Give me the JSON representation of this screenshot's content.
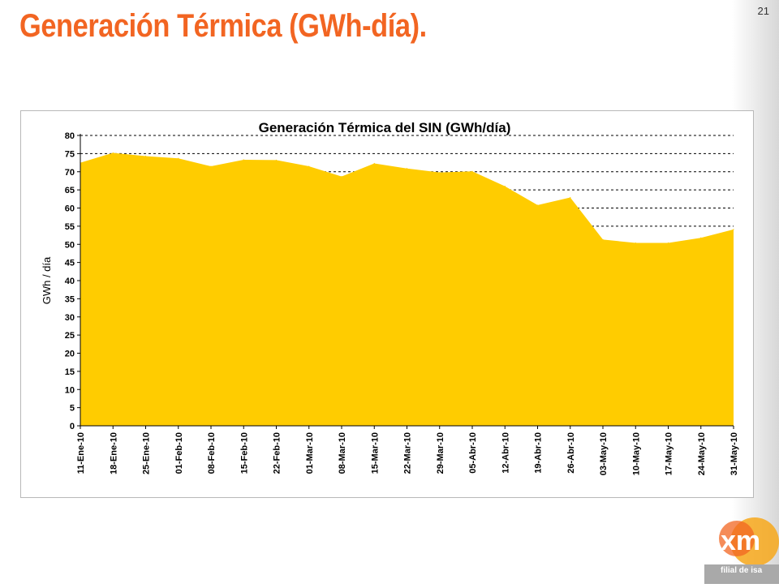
{
  "slide": {
    "title": "Generación Térmica (GWh-día).",
    "page_number": "21",
    "logo_text": "xm",
    "logo_tagline": "filial de isa"
  },
  "colors": {
    "title": "#f26522",
    "area_fill": "#ffcc00",
    "gridline": "#000000"
  },
  "chart_data": {
    "type": "area",
    "title": "Generación Térmica del SIN (GWh/día)",
    "xlabel": "",
    "ylabel": "GWh / día",
    "ylim": [
      0,
      80
    ],
    "yticks": [
      0,
      5,
      10,
      15,
      20,
      25,
      30,
      35,
      40,
      45,
      50,
      55,
      60,
      65,
      70,
      75,
      80
    ],
    "grid": true,
    "legend": "none",
    "x": [
      "11-Ene-10",
      "18-Ene-10",
      "25-Ene-10",
      "01-Feb-10",
      "08-Feb-10",
      "15-Feb-10",
      "22-Feb-10",
      "01-Mar-10",
      "08-Mar-10",
      "15-Mar-10",
      "22-Mar-10",
      "29-Mar-10",
      "05-Abr-10",
      "12-Abr-10",
      "19-Abr-10",
      "26-Abr-10",
      "03-May-10",
      "10-May-10",
      "17-May-10",
      "24-May-10",
      "31-May-10"
    ],
    "values": [
      72.5,
      75.2,
      74.3,
      73.7,
      71.5,
      73.3,
      73.2,
      71.5,
      68.7,
      72.3,
      70.9,
      69.8,
      70.1,
      66.0,
      60.8,
      62.9,
      51.3,
      50.4,
      50.4,
      51.8,
      54.1
    ]
  }
}
